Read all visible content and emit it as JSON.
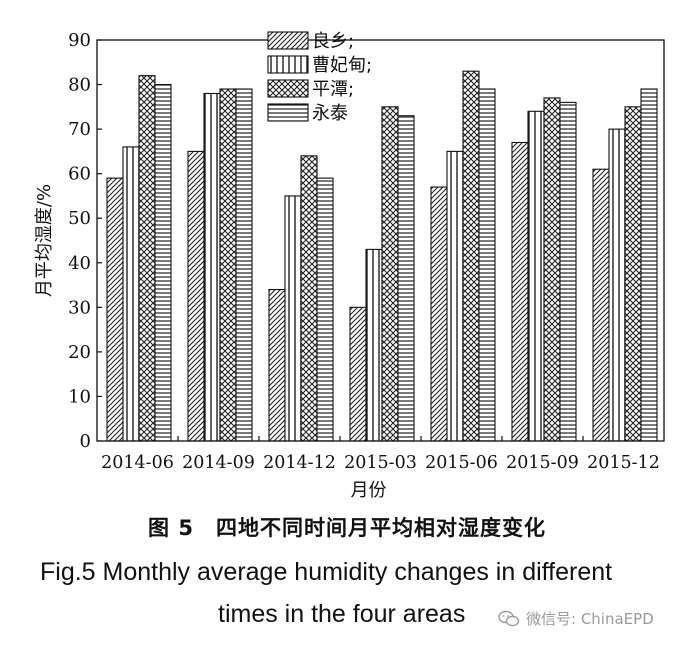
{
  "chart_data": {
    "type": "bar",
    "title": "",
    "xlabel": "月份",
    "ylabel": "月平均湿度/%",
    "ylim": [
      0,
      90
    ],
    "yticks": [
      0,
      10,
      20,
      30,
      40,
      50,
      60,
      70,
      80,
      90
    ],
    "categories": [
      "2014-06",
      "2014-09",
      "2014-12",
      "2015-03",
      "2015-06",
      "2015-09",
      "2015-12"
    ],
    "legend_position": "top-center",
    "series": [
      {
        "name": "良乡;",
        "pattern": "diagonal-hatch",
        "values": [
          59,
          65,
          34,
          30,
          57,
          67,
          61
        ]
      },
      {
        "name": "曹妃甸;",
        "pattern": "vertical-lines",
        "values": [
          66,
          78,
          55,
          43,
          65,
          74,
          70
        ]
      },
      {
        "name": "平潭;",
        "pattern": "crosshatch",
        "values": [
          82,
          79,
          64,
          75,
          83,
          77,
          75
        ]
      },
      {
        "name": "永泰",
        "pattern": "horizontal-lines",
        "values": [
          80,
          79,
          59,
          73,
          79,
          76,
          79
        ]
      }
    ]
  },
  "caption": {
    "zh": "图 5　四地不同时间月平均相对湿度变化",
    "en_line1": "Fig.5   Monthly average humidity changes in different",
    "en_line2": "times in the four areas"
  },
  "watermark": {
    "text": "微信号: ChinaEPD",
    "icon": "wechat-icon"
  }
}
